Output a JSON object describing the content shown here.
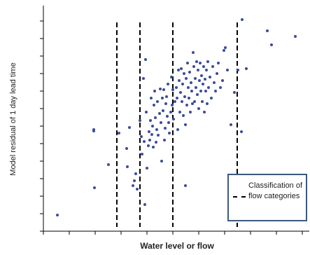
{
  "chart_data": {
    "type": "scatter",
    "x_label": "Water level or flow",
    "y_label": "Model residual of 1 day lead time",
    "legend_label": "Classification of flow categories",
    "color": "#3a4c9c",
    "threshold_color": "#000000",
    "thresholds": [
      105,
      138,
      185,
      277
    ],
    "xlim": [
      0,
      380
    ],
    "ylim": [
      0,
      322
    ],
    "xticks": [
      0,
      37,
      74,
      111,
      148,
      185,
      222,
      259,
      296,
      333,
      370
    ],
    "yticks": [
      0,
      25,
      50,
      75,
      100,
      125,
      150,
      175,
      200,
      225,
      250,
      275,
      300
    ],
    "x": [
      20,
      72,
      72,
      73,
      93,
      108,
      119,
      120,
      123,
      128,
      130,
      132,
      134,
      138,
      140,
      141,
      143,
      144,
      145,
      146,
      147,
      148,
      150,
      151,
      152,
      153,
      154,
      155,
      156,
      157,
      158,
      159,
      160,
      161,
      162,
      163,
      164,
      166,
      167,
      168,
      169,
      170,
      171,
      172,
      173,
      174,
      175,
      176,
      177,
      178,
      179,
      180,
      182,
      183,
      184,
      185,
      186,
      188,
      190,
      191,
      192,
      193,
      194,
      195,
      196,
      197,
      198,
      199,
      200,
      201,
      202,
      203,
      204,
      205,
      206,
      207,
      208,
      209,
      210,
      211,
      212,
      213,
      214,
      215,
      216,
      217,
      218,
      219,
      220,
      221,
      222,
      223,
      224,
      225,
      226,
      227,
      228,
      229,
      230,
      231,
      232,
      233,
      234,
      235,
      236,
      238,
      240,
      242,
      244,
      246,
      248,
      250,
      253,
      256,
      258,
      260,
      263,
      268,
      273,
      278,
      283,
      284,
      290,
      320,
      326,
      360,
      203
    ],
    "values": [
      23,
      145,
      143,
      62,
      95,
      140,
      118,
      92,
      148,
      65,
      72,
      82,
      60,
      158,
      135,
      110,
      218,
      128,
      38,
      245,
      170,
      90,
      122,
      142,
      130,
      158,
      190,
      138,
      150,
      120,
      180,
      200,
      162,
      127,
      145,
      185,
      137,
      168,
      203,
      155,
      100,
      190,
      172,
      202,
      130,
      147,
      182,
      192,
      164,
      210,
      155,
      140,
      170,
      220,
      180,
      202,
      160,
      185,
      205,
      190,
      145,
      230,
      215,
      170,
      198,
      232,
      185,
      210,
      165,
      225,
      192,
      152,
      218,
      180,
      240,
      205,
      190,
      227,
      170,
      212,
      200,
      182,
      255,
      235,
      185,
      218,
      205,
      242,
      195,
      230,
      175,
      215,
      240,
      200,
      222,
      185,
      210,
      235,
      170,
      217,
      200,
      230,
      182,
      242,
      205,
      220,
      190,
      235,
      212,
      200,
      225,
      240,
      205,
      215,
      258,
      262,
      230,
      152,
      198,
      230,
      142,
      302,
      232,
      286,
      266,
      278,
      65
    ]
  }
}
